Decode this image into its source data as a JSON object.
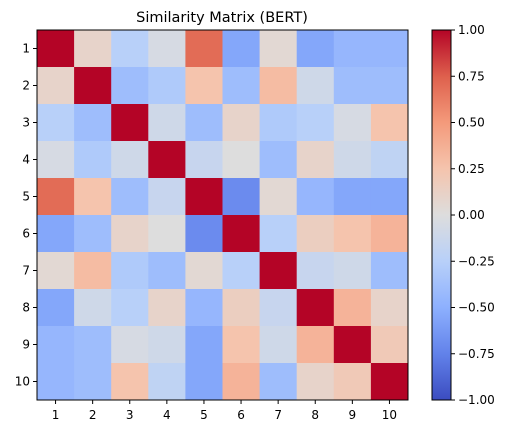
{
  "chart_data": {
    "type": "heatmap",
    "title": "Similarity Matrix (BERT)",
    "xlabel": "",
    "ylabel": "",
    "x_categories": [
      "1",
      "2",
      "3",
      "4",
      "5",
      "6",
      "7",
      "8",
      "9",
      "10"
    ],
    "y_categories": [
      "1",
      "2",
      "3",
      "4",
      "5",
      "6",
      "7",
      "8",
      "9",
      "10"
    ],
    "values": [
      [
        1.0,
        0.1,
        -0.25,
        -0.05,
        0.7,
        -0.55,
        0.05,
        -0.55,
        -0.45,
        -0.45
      ],
      [
        0.1,
        1.0,
        -0.4,
        -0.3,
        0.25,
        -0.4,
        0.3,
        -0.1,
        -0.4,
        -0.4
      ],
      [
        -0.25,
        -0.4,
        1.0,
        -0.1,
        -0.4,
        0.1,
        -0.3,
        -0.25,
        -0.05,
        0.25
      ],
      [
        -0.05,
        -0.3,
        -0.1,
        1.0,
        -0.15,
        0.0,
        -0.4,
        0.1,
        -0.1,
        -0.2
      ],
      [
        0.7,
        0.25,
        -0.4,
        -0.15,
        1.0,
        -0.7,
        0.05,
        -0.45,
        -0.55,
        -0.55
      ],
      [
        -0.55,
        -0.4,
        0.1,
        0.0,
        -0.7,
        1.0,
        -0.25,
        0.15,
        0.25,
        0.35
      ],
      [
        0.05,
        0.3,
        -0.3,
        -0.4,
        0.05,
        -0.25,
        1.0,
        -0.15,
        -0.1,
        -0.4
      ],
      [
        -0.55,
        -0.1,
        -0.25,
        0.1,
        -0.45,
        0.15,
        -0.15,
        1.0,
        0.35,
        0.1
      ],
      [
        -0.45,
        -0.4,
        -0.05,
        -0.1,
        -0.55,
        0.25,
        -0.1,
        0.35,
        1.0,
        0.2
      ],
      [
        -0.45,
        -0.4,
        0.25,
        -0.2,
        -0.55,
        0.35,
        -0.4,
        0.1,
        0.2,
        1.0
      ]
    ],
    "colormap": "coolwarm",
    "vmin": -1.0,
    "vmax": 1.0,
    "colorbar_ticks": [
      "1.00",
      "0.75",
      "0.50",
      "0.25",
      "0.00",
      "−0.25",
      "−0.50",
      "−0.75",
      "−1.00"
    ],
    "colorbar_values": [
      1.0,
      0.75,
      0.5,
      0.25,
      0.0,
      -0.25,
      -0.5,
      -0.75,
      -1.0
    ]
  }
}
